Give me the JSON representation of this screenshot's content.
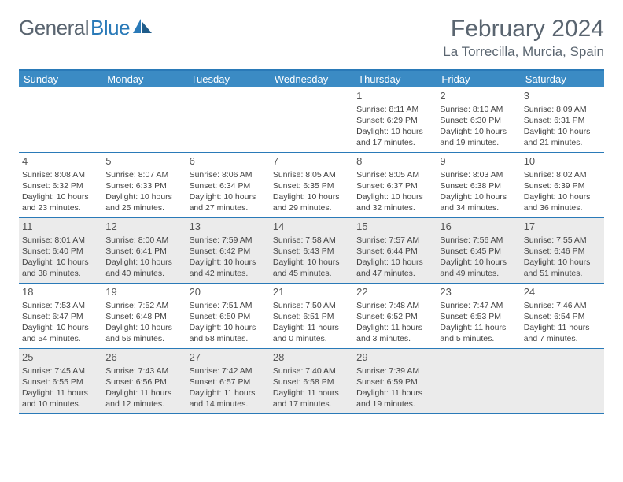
{
  "brand": {
    "text1": "General",
    "text2": "Blue"
  },
  "title": "February 2024",
  "location": "La Torrecilla, Murcia, Spain",
  "colors": {
    "header_bg": "#3b8bc4",
    "border": "#2a7ab8",
    "alt_row_bg": "#ebebeb",
    "text_muted": "#5a6570"
  },
  "day_headers": [
    "Sunday",
    "Monday",
    "Tuesday",
    "Wednesday",
    "Thursday",
    "Friday",
    "Saturday"
  ],
  "weeks": [
    {
      "alt": false,
      "days": [
        {
          "n": "",
          "sr": "",
          "ss": "",
          "dl": ""
        },
        {
          "n": "",
          "sr": "",
          "ss": "",
          "dl": ""
        },
        {
          "n": "",
          "sr": "",
          "ss": "",
          "dl": ""
        },
        {
          "n": "",
          "sr": "",
          "ss": "",
          "dl": ""
        },
        {
          "n": "1",
          "sr": "Sunrise: 8:11 AM",
          "ss": "Sunset: 6:29 PM",
          "dl": "Daylight: 10 hours and 17 minutes."
        },
        {
          "n": "2",
          "sr": "Sunrise: 8:10 AM",
          "ss": "Sunset: 6:30 PM",
          "dl": "Daylight: 10 hours and 19 minutes."
        },
        {
          "n": "3",
          "sr": "Sunrise: 8:09 AM",
          "ss": "Sunset: 6:31 PM",
          "dl": "Daylight: 10 hours and 21 minutes."
        }
      ]
    },
    {
      "alt": false,
      "days": [
        {
          "n": "4",
          "sr": "Sunrise: 8:08 AM",
          "ss": "Sunset: 6:32 PM",
          "dl": "Daylight: 10 hours and 23 minutes."
        },
        {
          "n": "5",
          "sr": "Sunrise: 8:07 AM",
          "ss": "Sunset: 6:33 PM",
          "dl": "Daylight: 10 hours and 25 minutes."
        },
        {
          "n": "6",
          "sr": "Sunrise: 8:06 AM",
          "ss": "Sunset: 6:34 PM",
          "dl": "Daylight: 10 hours and 27 minutes."
        },
        {
          "n": "7",
          "sr": "Sunrise: 8:05 AM",
          "ss": "Sunset: 6:35 PM",
          "dl": "Daylight: 10 hours and 29 minutes."
        },
        {
          "n": "8",
          "sr": "Sunrise: 8:05 AM",
          "ss": "Sunset: 6:37 PM",
          "dl": "Daylight: 10 hours and 32 minutes."
        },
        {
          "n": "9",
          "sr": "Sunrise: 8:03 AM",
          "ss": "Sunset: 6:38 PM",
          "dl": "Daylight: 10 hours and 34 minutes."
        },
        {
          "n": "10",
          "sr": "Sunrise: 8:02 AM",
          "ss": "Sunset: 6:39 PM",
          "dl": "Daylight: 10 hours and 36 minutes."
        }
      ]
    },
    {
      "alt": true,
      "days": [
        {
          "n": "11",
          "sr": "Sunrise: 8:01 AM",
          "ss": "Sunset: 6:40 PM",
          "dl": "Daylight: 10 hours and 38 minutes."
        },
        {
          "n": "12",
          "sr": "Sunrise: 8:00 AM",
          "ss": "Sunset: 6:41 PM",
          "dl": "Daylight: 10 hours and 40 minutes."
        },
        {
          "n": "13",
          "sr": "Sunrise: 7:59 AM",
          "ss": "Sunset: 6:42 PM",
          "dl": "Daylight: 10 hours and 42 minutes."
        },
        {
          "n": "14",
          "sr": "Sunrise: 7:58 AM",
          "ss": "Sunset: 6:43 PM",
          "dl": "Daylight: 10 hours and 45 minutes."
        },
        {
          "n": "15",
          "sr": "Sunrise: 7:57 AM",
          "ss": "Sunset: 6:44 PM",
          "dl": "Daylight: 10 hours and 47 minutes."
        },
        {
          "n": "16",
          "sr": "Sunrise: 7:56 AM",
          "ss": "Sunset: 6:45 PM",
          "dl": "Daylight: 10 hours and 49 minutes."
        },
        {
          "n": "17",
          "sr": "Sunrise: 7:55 AM",
          "ss": "Sunset: 6:46 PM",
          "dl": "Daylight: 10 hours and 51 minutes."
        }
      ]
    },
    {
      "alt": false,
      "days": [
        {
          "n": "18",
          "sr": "Sunrise: 7:53 AM",
          "ss": "Sunset: 6:47 PM",
          "dl": "Daylight: 10 hours and 54 minutes."
        },
        {
          "n": "19",
          "sr": "Sunrise: 7:52 AM",
          "ss": "Sunset: 6:48 PM",
          "dl": "Daylight: 10 hours and 56 minutes."
        },
        {
          "n": "20",
          "sr": "Sunrise: 7:51 AM",
          "ss": "Sunset: 6:50 PM",
          "dl": "Daylight: 10 hours and 58 minutes."
        },
        {
          "n": "21",
          "sr": "Sunrise: 7:50 AM",
          "ss": "Sunset: 6:51 PM",
          "dl": "Daylight: 11 hours and 0 minutes."
        },
        {
          "n": "22",
          "sr": "Sunrise: 7:48 AM",
          "ss": "Sunset: 6:52 PM",
          "dl": "Daylight: 11 hours and 3 minutes."
        },
        {
          "n": "23",
          "sr": "Sunrise: 7:47 AM",
          "ss": "Sunset: 6:53 PM",
          "dl": "Daylight: 11 hours and 5 minutes."
        },
        {
          "n": "24",
          "sr": "Sunrise: 7:46 AM",
          "ss": "Sunset: 6:54 PM",
          "dl": "Daylight: 11 hours and 7 minutes."
        }
      ]
    },
    {
      "alt": true,
      "days": [
        {
          "n": "25",
          "sr": "Sunrise: 7:45 AM",
          "ss": "Sunset: 6:55 PM",
          "dl": "Daylight: 11 hours and 10 minutes."
        },
        {
          "n": "26",
          "sr": "Sunrise: 7:43 AM",
          "ss": "Sunset: 6:56 PM",
          "dl": "Daylight: 11 hours and 12 minutes."
        },
        {
          "n": "27",
          "sr": "Sunrise: 7:42 AM",
          "ss": "Sunset: 6:57 PM",
          "dl": "Daylight: 11 hours and 14 minutes."
        },
        {
          "n": "28",
          "sr": "Sunrise: 7:40 AM",
          "ss": "Sunset: 6:58 PM",
          "dl": "Daylight: 11 hours and 17 minutes."
        },
        {
          "n": "29",
          "sr": "Sunrise: 7:39 AM",
          "ss": "Sunset: 6:59 PM",
          "dl": "Daylight: 11 hours and 19 minutes."
        },
        {
          "n": "",
          "sr": "",
          "ss": "",
          "dl": ""
        },
        {
          "n": "",
          "sr": "",
          "ss": "",
          "dl": ""
        }
      ]
    }
  ]
}
